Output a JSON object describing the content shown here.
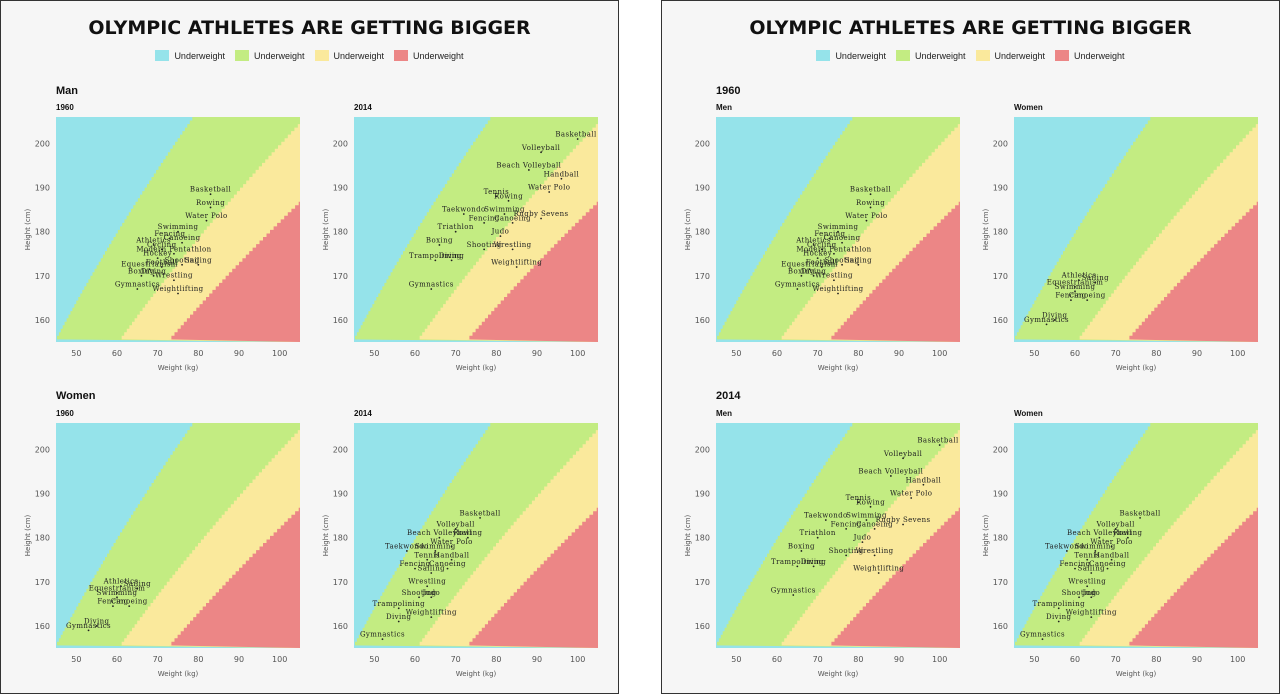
{
  "colors": {
    "blue": "#95e3ea",
    "green": "#c3ec82",
    "yellow": "#fae99c",
    "red": "#ec8686"
  },
  "panels": [
    {
      "title": "OLYMPIC ATHLETES ARE GETTING BIGGER",
      "legend": [
        "Underweight",
        "Underweight",
        "Underweight",
        "Underweight"
      ],
      "sections": [
        {
          "label": "Man",
          "subs": [
            "1960",
            "2014"
          ]
        },
        {
          "label": "Women",
          "subs": [
            "1960",
            "2014"
          ]
        }
      ]
    },
    {
      "title": "OLYMPIC ATHLETES ARE GETTING BIGGER",
      "legend": [
        "Underweight",
        "Underweight",
        "Underweight",
        "Underweight"
      ],
      "sections": [
        {
          "label": "1960",
          "subs": [
            "Men",
            "Women"
          ]
        },
        {
          "label": "2014",
          "subs": [
            "Men",
            "Women"
          ]
        }
      ]
    }
  ],
  "chart_data": [
    {
      "id": "men1960",
      "type": "scatter",
      "title": "Men 1960",
      "xlabel": "Weight (kg)",
      "ylabel": "Height (cm)",
      "xlim": [
        45,
        105
      ],
      "ylim": [
        155,
        206
      ],
      "xticks": [
        "50",
        "60",
        "70",
        "80",
        "90",
        "100"
      ],
      "yticks": [
        "160",
        "170",
        "180",
        "190",
        "200"
      ],
      "points": [
        {
          "name": "Basketball",
          "x": 83,
          "y": 188.5
        },
        {
          "name": "Rowing",
          "x": 83,
          "y": 185.5
        },
        {
          "name": "Water Polo",
          "x": 82,
          "y": 182.5
        },
        {
          "name": "Swimming",
          "x": 75,
          "y": 180
        },
        {
          "name": "Fencing",
          "x": 73,
          "y": 178.5
        },
        {
          "name": "Canoeing",
          "x": 76,
          "y": 177.5
        },
        {
          "name": "Athletics",
          "x": 69,
          "y": 177
        },
        {
          "name": "Cycling",
          "x": 71,
          "y": 176
        },
        {
          "name": "Modern Pentathlon",
          "x": 74,
          "y": 175
        },
        {
          "name": "Hockey",
          "x": 70,
          "y": 174
        },
        {
          "name": "Football",
          "x": 71,
          "y": 172
        },
        {
          "name": "Shooting",
          "x": 76,
          "y": 172.5
        },
        {
          "name": "Sailing",
          "x": 80,
          "y": 172.5
        },
        {
          "name": "Equestrianism",
          "x": 68,
          "y": 171.5
        },
        {
          "name": "Boxing",
          "x": 66,
          "y": 170
        },
        {
          "name": "Diving",
          "x": 69,
          "y": 170
        },
        {
          "name": "Wrestling",
          "x": 74,
          "y": 169
        },
        {
          "name": "Gymnastics",
          "x": 65,
          "y": 167
        },
        {
          "name": "Weightlifting",
          "x": 75,
          "y": 166
        }
      ]
    },
    {
      "id": "men2014",
      "type": "scatter",
      "title": "Men 2014",
      "xlabel": "Weight (kg)",
      "ylabel": "Height (cm)",
      "xlim": [
        45,
        105
      ],
      "ylim": [
        155,
        206
      ],
      "xticks": [
        "50",
        "60",
        "70",
        "80",
        "90",
        "100"
      ],
      "yticks": [
        "160",
        "170",
        "180",
        "190",
        "200"
      ],
      "points": [
        {
          "name": "Basketball",
          "x": 100,
          "y": 201
        },
        {
          "name": "Volleyball",
          "x": 91,
          "y": 198
        },
        {
          "name": "Beach Volleyball",
          "x": 88,
          "y": 194
        },
        {
          "name": "Handball",
          "x": 96,
          "y": 192
        },
        {
          "name": "Water Polo",
          "x": 93,
          "y": 189
        },
        {
          "name": "Tennis",
          "x": 80,
          "y": 188
        },
        {
          "name": "Rowing",
          "x": 83,
          "y": 187
        },
        {
          "name": "Taekwondo",
          "x": 72,
          "y": 184
        },
        {
          "name": "Swimming",
          "x": 82,
          "y": 184
        },
        {
          "name": "Rugby Sevens",
          "x": 91,
          "y": 183
        },
        {
          "name": "Fencing",
          "x": 77,
          "y": 182
        },
        {
          "name": "Canoeing",
          "x": 84,
          "y": 182
        },
        {
          "name": "Triathlon",
          "x": 70,
          "y": 180
        },
        {
          "name": "Judo",
          "x": 81,
          "y": 179
        },
        {
          "name": "Boxing",
          "x": 66,
          "y": 177
        },
        {
          "name": "Shooting",
          "x": 77,
          "y": 176
        },
        {
          "name": "Wrestling",
          "x": 84,
          "y": 176
        },
        {
          "name": "Diving",
          "x": 69,
          "y": 173.5
        },
        {
          "name": "Trampolining",
          "x": 65,
          "y": 173.5
        },
        {
          "name": "Weightlifting",
          "x": 85,
          "y": 172
        },
        {
          "name": "Gymnastics",
          "x": 64,
          "y": 167
        }
      ]
    },
    {
      "id": "women1960",
      "type": "scatter",
      "title": "Women 1960",
      "xlabel": "Weight (kg)",
      "ylabel": "Height (cm)",
      "xlim": [
        45,
        105
      ],
      "ylim": [
        155,
        206
      ],
      "xticks": [
        "50",
        "60",
        "70",
        "80",
        "90",
        "100"
      ],
      "yticks": [
        "160",
        "170",
        "180",
        "190",
        "200"
      ],
      "points": [
        {
          "name": "Athletics",
          "x": 61,
          "y": 169
        },
        {
          "name": "Sailing",
          "x": 65,
          "y": 168.5
        },
        {
          "name": "Equestrianism",
          "x": 60,
          "y": 167.5
        },
        {
          "name": "Swimming",
          "x": 60,
          "y": 166.5
        },
        {
          "name": "Fencing",
          "x": 59,
          "y": 164.5
        },
        {
          "name": "Canoeing",
          "x": 63,
          "y": 164.5
        },
        {
          "name": "Diving",
          "x": 55,
          "y": 160
        },
        {
          "name": "Gymnastics",
          "x": 53,
          "y": 159
        }
      ]
    },
    {
      "id": "women2014",
      "type": "scatter",
      "title": "Women 2014",
      "xlabel": "Weight (kg)",
      "ylabel": "Height (cm)",
      "xlim": [
        45,
        105
      ],
      "ylim": [
        155,
        206
      ],
      "xticks": [
        "50",
        "60",
        "70",
        "80",
        "90",
        "100"
      ],
      "yticks": [
        "160",
        "170",
        "180",
        "190",
        "200"
      ],
      "points": [
        {
          "name": "Basketball",
          "x": 76,
          "y": 184.5
        },
        {
          "name": "Volleyball",
          "x": 70,
          "y": 182
        },
        {
          "name": "Rowing",
          "x": 73,
          "y": 180
        },
        {
          "name": "Beach Volleyball",
          "x": 66,
          "y": 180
        },
        {
          "name": "Water Polo",
          "x": 69,
          "y": 178
        },
        {
          "name": "Taekwondo",
          "x": 58,
          "y": 177
        },
        {
          "name": "Swimming",
          "x": 65,
          "y": 177
        },
        {
          "name": "Handball",
          "x": 69,
          "y": 175
        },
        {
          "name": "Tennis",
          "x": 63,
          "y": 175
        },
        {
          "name": "Canoeing",
          "x": 68,
          "y": 173
        },
        {
          "name": "Fencing",
          "x": 60,
          "y": 173
        },
        {
          "name": "Sailing",
          "x": 64,
          "y": 172
        },
        {
          "name": "Wrestling",
          "x": 63,
          "y": 169
        },
        {
          "name": "Shooting",
          "x": 61,
          "y": 166.5
        },
        {
          "name": "Judo",
          "x": 64,
          "y": 166.5
        },
        {
          "name": "Trampolining",
          "x": 56,
          "y": 164
        },
        {
          "name": "Weightlifting",
          "x": 64,
          "y": 162
        },
        {
          "name": "Diving",
          "x": 56,
          "y": 161
        },
        {
          "name": "Gymnastics",
          "x": 52,
          "y": 157
        }
      ]
    }
  ]
}
